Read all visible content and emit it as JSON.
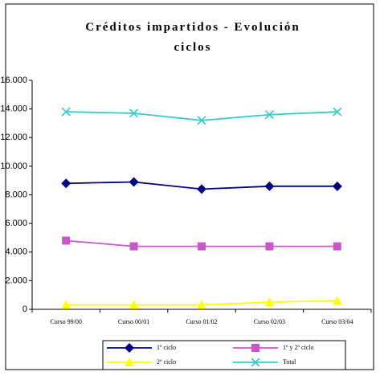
{
  "chart_data": {
    "type": "line",
    "title": "Créditos impartidos - Evolución ciclos",
    "categories": [
      "Curso 99/00",
      "Curso 00/01",
      "Curso 01/02",
      "Curso 02/03",
      "Curso 03/04"
    ],
    "series": [
      {
        "name": "1º ciclo",
        "color": "#000080",
        "marker": "diamond",
        "values": [
          8800,
          8900,
          8400,
          8600,
          8600
        ]
      },
      {
        "name": "1º y 2º ciclo",
        "color": "#cc55cc",
        "marker": "square",
        "values": [
          4800,
          4400,
          4400,
          4400,
          4400
        ]
      },
      {
        "name": "2º ciclo",
        "color": "#ffff00",
        "marker": "triangle",
        "values": [
          300,
          300,
          300,
          500,
          600
        ]
      },
      {
        "name": "Total",
        "color": "#33cccc",
        "marker": "x",
        "values": [
          13800,
          13700,
          13200,
          13600,
          13800
        ]
      }
    ],
    "ylim": [
      0,
      16000
    ],
    "yticks": [
      0,
      {
        "value": 2000,
        "label": "2.000"
      },
      {
        "value": 4000,
        "label": "4.000"
      },
      {
        "value": 6000,
        "label": "6.000"
      },
      {
        "value": 8000,
        "label": "8.000"
      },
      {
        "value": 10000,
        "label": "10.000"
      },
      {
        "value": 12000,
        "label": "12.000"
      },
      {
        "value": 14000,
        "label": "14.000"
      },
      {
        "value": 16000,
        "label": "16.000"
      }
    ],
    "grid": false,
    "legend": "bottom"
  }
}
